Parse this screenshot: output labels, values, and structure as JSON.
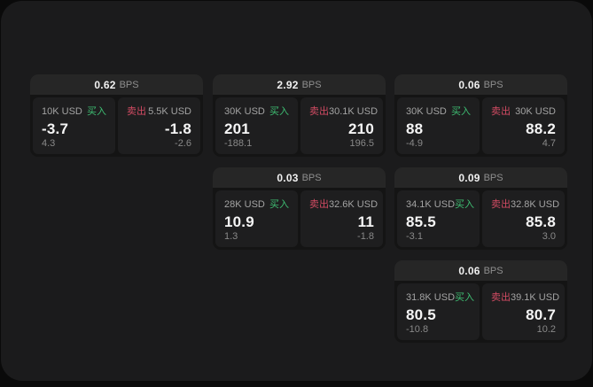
{
  "labels": {
    "buy": "买入",
    "sell": "卖出",
    "bps_unit": "BPS"
  },
  "colors": {
    "buy": "#3ebd72",
    "sell": "#d24b63",
    "card_header": "#262626",
    "panel": "#1e1e1f",
    "window": "#1b1b1c"
  },
  "cards": [
    {
      "bps": "0.62",
      "col": 0,
      "row": 0,
      "buy": {
        "size": "10K USD",
        "price": "-3.7",
        "change": "4.3"
      },
      "sell": {
        "size": "5.5K USD",
        "price": "-1.8",
        "change": "-2.6"
      }
    },
    {
      "bps": "2.92",
      "col": 1,
      "row": 0,
      "buy": {
        "size": "30K USD",
        "price": "201",
        "change": "-188.1"
      },
      "sell": {
        "size": "30.1K USD",
        "price": "210",
        "change": "196.5"
      }
    },
    {
      "bps": "0.06",
      "col": 2,
      "row": 0,
      "buy": {
        "size": "30K USD",
        "price": "88",
        "change": "-4.9"
      },
      "sell": {
        "size": "30K USD",
        "price": "88.2",
        "change": "4.7"
      }
    },
    {
      "bps": "0.03",
      "col": 1,
      "row": 1,
      "buy": {
        "size": "28K USD",
        "price": "10.9",
        "change": "1.3"
      },
      "sell": {
        "size": "32.6K USD",
        "price": "11",
        "change": "-1.8"
      }
    },
    {
      "bps": "0.09",
      "col": 2,
      "row": 1,
      "buy": {
        "size": "34.1K USD",
        "price": "85.5",
        "change": "-3.1"
      },
      "sell": {
        "size": "32.8K USD",
        "price": "85.8",
        "change": "3.0"
      }
    },
    {
      "bps": "0.06",
      "col": 2,
      "row": 2,
      "buy": {
        "size": "31.8K USD",
        "price": "80.5",
        "change": "-10.8"
      },
      "sell": {
        "size": "39.1K USD",
        "price": "80.7",
        "change": "10.2"
      }
    }
  ]
}
